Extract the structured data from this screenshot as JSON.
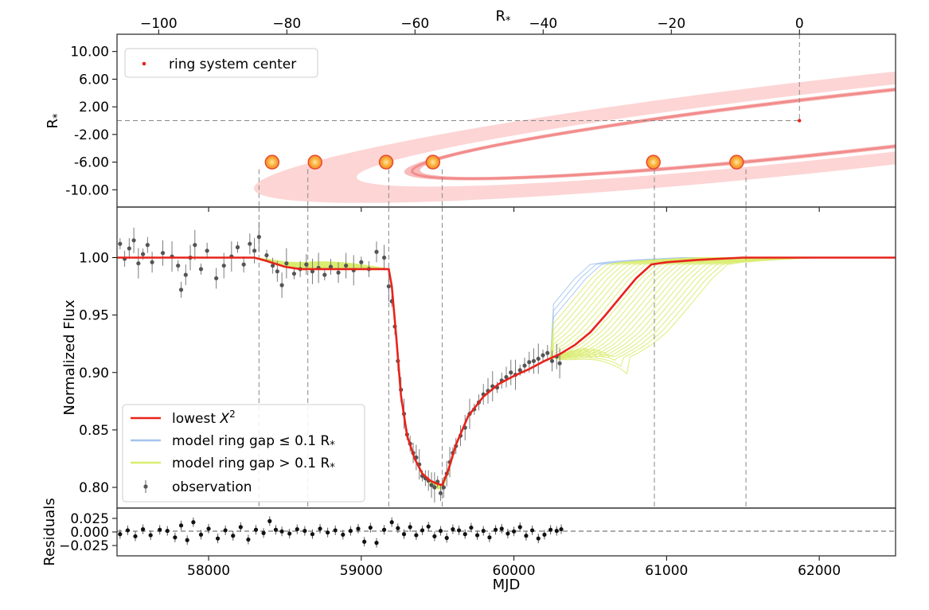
{
  "chart_data": [
    {
      "panel": "geometry",
      "type": "scatter",
      "top_axis_label": "R_*",
      "ylabel": "R_*",
      "xlim": [
        -106.5,
        15
      ],
      "ylim": [
        -12.5,
        12.5
      ],
      "top_ticks": [
        -100,
        -80,
        -60,
        -40,
        -20,
        0
      ],
      "top_tick_labels": [
        "−100",
        "−80",
        "−60",
        "−40",
        "−20",
        "0"
      ],
      "yticks": [
        10,
        6,
        2,
        -2,
        -6,
        -10
      ],
      "ytick_labels": [
        "10.00",
        "6.00",
        "2.00",
        "-2.00",
        "-6.00",
        "-10.00"
      ],
      "legend": {
        "location": "upper left",
        "entries": [
          {
            "label": "ring system center",
            "color": "#e8231b"
          }
        ]
      },
      "ring_system_center": {
        "x": 0,
        "y": 0
      },
      "star_positions": [
        {
          "x": -82.3,
          "y": -6
        },
        {
          "x": -75.6,
          "y": -6
        },
        {
          "x": -64.5,
          "y": -6
        },
        {
          "x": -57.2,
          "y": -6
        },
        {
          "x": -22.8,
          "y": -6
        },
        {
          "x": -9.8,
          "y": -6
        }
      ],
      "colors": {
        "ring_outer": "#fdd5d5",
        "ring_inner": "#f6a3a3",
        "ring_line": "#f28c8c",
        "star_core": "#f38a2a",
        "star_edge": "#e8452d",
        "center_point": "#e8231b"
      }
    },
    {
      "panel": "light_curve",
      "type": "line",
      "ylabel": "Normalized Flux",
      "xlim": [
        57400,
        62500
      ],
      "ylim": [
        0.782,
        1.044
      ],
      "yticks": [
        0.8,
        0.85,
        0.9,
        0.95,
        1.0
      ],
      "ytick_labels": [
        "0.80",
        "0.85",
        "0.90",
        "0.95",
        "1.00"
      ],
      "vertical_markers_mjd": [
        58330,
        58650,
        59180,
        59530,
        60920,
        61520
      ],
      "legend": {
        "location": "lower left",
        "entries": [
          {
            "label": "lowest",
            "label_suffix": "X",
            "label_sup": "2",
            "color": "#e8231b",
            "style": "line"
          },
          {
            "label": "model ring gap  ≤  0.1 R",
            "label_sub": "*",
            "color": "#a4c4ef",
            "style": "line"
          },
          {
            "label": "model ring gap > 0.1 R",
            "label_sub": "*",
            "color": "#d9ec6f",
            "style": "line"
          },
          {
            "label": "observation",
            "color": "#555555",
            "style": "errorbar"
          }
        ]
      },
      "series": [
        {
          "name": "lowest X^2",
          "color": "#e8231b",
          "x": [
            57400,
            58300,
            58380,
            58500,
            58600,
            58800,
            59000,
            59150,
            59180,
            59200,
            59230,
            59260,
            59300,
            59350,
            59400,
            59450,
            59500,
            59530,
            59570,
            59620,
            59700,
            59800,
            59900,
            60000,
            60100,
            60200,
            60300,
            60400,
            60500,
            60600,
            60700,
            60800,
            60900,
            61000,
            61200,
            61500,
            62500
          ],
          "y": [
            1.0,
            1.0,
            0.997,
            0.992,
            0.99,
            0.99,
            0.99,
            0.99,
            0.99,
            0.975,
            0.93,
            0.88,
            0.845,
            0.825,
            0.812,
            0.806,
            0.803,
            0.802,
            0.815,
            0.837,
            0.862,
            0.879,
            0.89,
            0.897,
            0.903,
            0.91,
            0.916,
            0.924,
            0.935,
            0.95,
            0.966,
            0.982,
            0.994,
            0.996,
            0.998,
            1.0,
            1.0
          ]
        }
      ],
      "observations": [
        {
          "x": 57420,
          "y": 1.012
        },
        {
          "x": 57450,
          "y": 0.999
        },
        {
          "x": 57480,
          "y": 1.008
        },
        {
          "x": 57510,
          "y": 1.015
        },
        {
          "x": 57540,
          "y": 0.995
        },
        {
          "x": 57570,
          "y": 1.003
        },
        {
          "x": 57600,
          "y": 1.011
        },
        {
          "x": 57630,
          "y": 0.996
        },
        {
          "x": 57700,
          "y": 1.004
        },
        {
          "x": 57760,
          "y": 1.001
        },
        {
          "x": 57800,
          "y": 0.993
        },
        {
          "x": 57820,
          "y": 0.972
        },
        {
          "x": 57850,
          "y": 0.985
        },
        {
          "x": 57880,
          "y": 1.0
        },
        {
          "x": 57910,
          "y": 1.011
        },
        {
          "x": 57950,
          "y": 0.99
        },
        {
          "x": 57990,
          "y": 1.006
        },
        {
          "x": 58050,
          "y": 0.982
        },
        {
          "x": 58100,
          "y": 0.993
        },
        {
          "x": 58150,
          "y": 1.001
        },
        {
          "x": 58190,
          "y": 1.009
        },
        {
          "x": 58230,
          "y": 0.994
        },
        {
          "x": 58270,
          "y": 1.012
        },
        {
          "x": 58300,
          "y": 1.006
        },
        {
          "x": 58330,
          "y": 1.018
        },
        {
          "x": 58380,
          "y": 1.002
        },
        {
          "x": 58420,
          "y": 0.993
        },
        {
          "x": 58450,
          "y": 0.988
        },
        {
          "x": 58480,
          "y": 0.976
        },
        {
          "x": 58510,
          "y": 0.995
        },
        {
          "x": 58560,
          "y": 0.986
        },
        {
          "x": 58600,
          "y": 0.99
        },
        {
          "x": 58640,
          "y": 0.994
        },
        {
          "x": 58680,
          "y": 0.988
        },
        {
          "x": 58720,
          "y": 0.991
        },
        {
          "x": 58760,
          "y": 0.985
        },
        {
          "x": 58800,
          "y": 0.992
        },
        {
          "x": 58850,
          "y": 0.987
        },
        {
          "x": 58900,
          "y": 0.993
        },
        {
          "x": 58950,
          "y": 0.989
        },
        {
          "x": 59000,
          "y": 0.996
        },
        {
          "x": 59050,
          "y": 0.99
        },
        {
          "x": 59100,
          "y": 1.005
        },
        {
          "x": 59150,
          "y": 1.0
        },
        {
          "x": 59180,
          "y": 0.975
        },
        {
          "x": 59200,
          "y": 0.962
        },
        {
          "x": 59220,
          "y": 0.94
        },
        {
          "x": 59240,
          "y": 0.91
        },
        {
          "x": 59260,
          "y": 0.885
        },
        {
          "x": 59280,
          "y": 0.864
        },
        {
          "x": 59300,
          "y": 0.846
        },
        {
          "x": 59320,
          "y": 0.838
        },
        {
          "x": 59340,
          "y": 0.83
        },
        {
          "x": 59360,
          "y": 0.826
        },
        {
          "x": 59380,
          "y": 0.82
        },
        {
          "x": 59400,
          "y": 0.81
        },
        {
          "x": 59420,
          "y": 0.808
        },
        {
          "x": 59440,
          "y": 0.806
        },
        {
          "x": 59460,
          "y": 0.802
        },
        {
          "x": 59480,
          "y": 0.8
        },
        {
          "x": 59500,
          "y": 0.805
        },
        {
          "x": 59520,
          "y": 0.795
        },
        {
          "x": 59540,
          "y": 0.8
        },
        {
          "x": 59560,
          "y": 0.812
        },
        {
          "x": 59580,
          "y": 0.822
        },
        {
          "x": 59600,
          "y": 0.83
        },
        {
          "x": 59620,
          "y": 0.836
        },
        {
          "x": 59650,
          "y": 0.845
        },
        {
          "x": 59680,
          "y": 0.852
        },
        {
          "x": 59710,
          "y": 0.864
        },
        {
          "x": 59740,
          "y": 0.868
        },
        {
          "x": 59770,
          "y": 0.874
        },
        {
          "x": 59800,
          "y": 0.881
        },
        {
          "x": 59830,
          "y": 0.884
        },
        {
          "x": 59860,
          "y": 0.888
        },
        {
          "x": 59890,
          "y": 0.887
        },
        {
          "x": 59920,
          "y": 0.893
        },
        {
          "x": 59950,
          "y": 0.896
        },
        {
          "x": 59980,
          "y": 0.9
        },
        {
          "x": 60010,
          "y": 0.898
        },
        {
          "x": 60040,
          "y": 0.902
        },
        {
          "x": 60070,
          "y": 0.906
        },
        {
          "x": 60100,
          "y": 0.909
        },
        {
          "x": 60130,
          "y": 0.91
        },
        {
          "x": 60160,
          "y": 0.912
        },
        {
          "x": 60190,
          "y": 0.915
        },
        {
          "x": 60220,
          "y": 0.917
        },
        {
          "x": 60250,
          "y": 0.91
        },
        {
          "x": 60280,
          "y": 0.914
        },
        {
          "x": 60300,
          "y": 0.908
        }
      ],
      "model_band": {
        "color": "#d9ec6f"
      },
      "model_band_blue": {
        "color": "#a4c4ef"
      }
    },
    {
      "panel": "residuals",
      "type": "scatter",
      "ylabel": "Residuals",
      "xlabel": "MJD",
      "xlim": [
        57400,
        62500
      ],
      "ylim": [
        -0.044,
        0.044
      ],
      "xticks": [
        58000,
        59000,
        60000,
        61000,
        62000
      ],
      "xtick_labels": [
        "58000",
        "59000",
        "60000",
        "61000",
        "62000"
      ],
      "yticks": [
        0.025,
        0.0,
        -0.025
      ],
      "ytick_labels": [
        "0.025",
        "0.000",
        "−0.025"
      ],
      "x": [
        57420,
        57470,
        57520,
        57570,
        57620,
        57680,
        57730,
        57780,
        57820,
        57860,
        57900,
        57950,
        58000,
        58060,
        58110,
        58160,
        58210,
        58260,
        58310,
        58360,
        58400,
        58440,
        58480,
        58530,
        58580,
        58630,
        58680,
        58730,
        58780,
        58830,
        58880,
        58930,
        58980,
        59020,
        59060,
        59100,
        59150,
        59200,
        59240,
        59280,
        59320,
        59360,
        59400,
        59440,
        59480,
        59520,
        59560,
        59600,
        59640,
        59680,
        59720,
        59760,
        59800,
        59840,
        59880,
        59920,
        59960,
        60000,
        60040,
        60080,
        60120,
        60160,
        60200,
        60240,
        60280,
        60310
      ],
      "y": [
        -0.004,
        0.003,
        -0.008,
        0.005,
        -0.006,
        0.004,
        0.002,
        -0.01,
        0.012,
        -0.015,
        0.018,
        -0.005,
        0.006,
        -0.012,
        0.003,
        -0.007,
        0.009,
        -0.014,
        0.004,
        -0.002,
        0.02,
        0.004,
        0.001,
        -0.003,
        0.005,
        0.002,
        -0.004,
        0.006,
        -0.001,
        0.003,
        -0.005,
        0.002,
        0.006,
        -0.018,
        0.008,
        -0.02,
        0.004,
        0.018,
        0.007,
        -0.004,
        0.009,
        -0.006,
        0.003,
        0.01,
        -0.008,
        0.002,
        -0.011,
        0.005,
        0.003,
        -0.004,
        0.008,
        -0.006,
        0.002,
        -0.01,
        0.004,
        0.006,
        -0.003,
        0.001,
        0.009,
        -0.007,
        0.003,
        -0.012,
        -0.005,
        0.004,
        0.002,
        0.005
      ]
    }
  ]
}
